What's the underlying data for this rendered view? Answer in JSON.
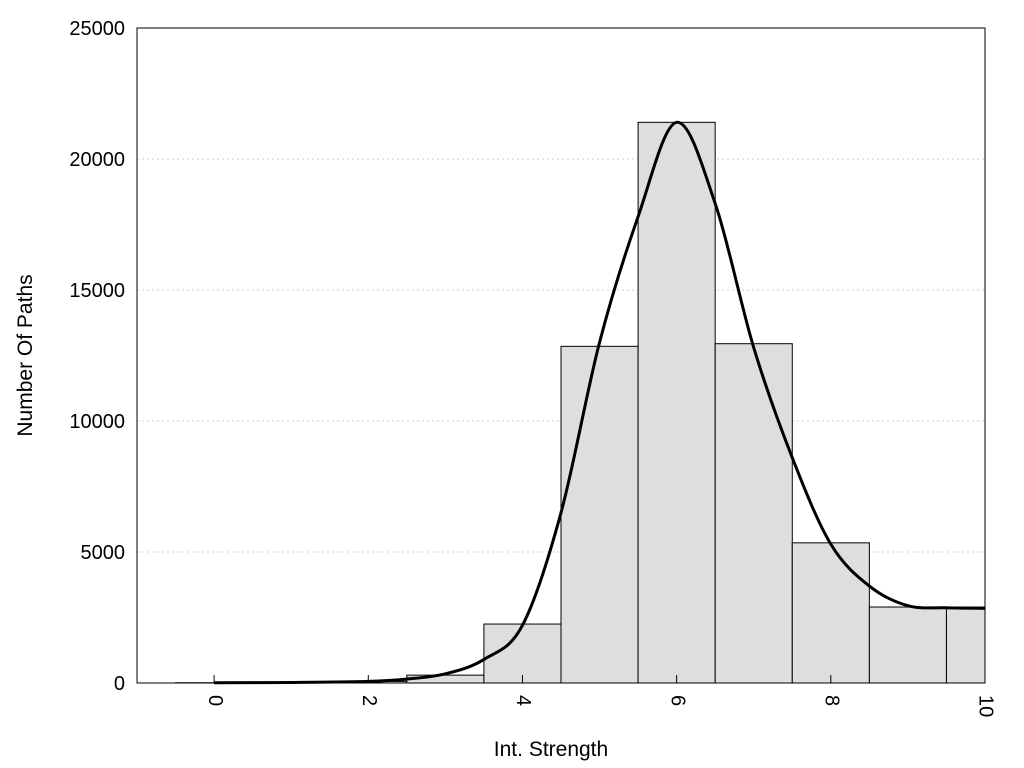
{
  "chart_data": {
    "type": "bar",
    "title": "",
    "xlabel": "Int. Strength",
    "ylabel": "Number Of Paths",
    "xlim": [
      -1,
      10
    ],
    "ylim": [
      0,
      25000
    ],
    "x_ticks": [
      "0",
      "2",
      "4",
      "6",
      "8",
      "10"
    ],
    "y_ticks": [
      "0",
      "5000",
      "10000",
      "15000",
      "20000",
      "25000"
    ],
    "grid": "horizontal dotted",
    "legend": "none",
    "bin_width": 1,
    "categories": [
      "0",
      "1",
      "2",
      "3",
      "4",
      "5",
      "6",
      "7",
      "8",
      "9",
      "10"
    ],
    "values": [
      10,
      20,
      60,
      300,
      2250,
      12850,
      21400,
      12950,
      5350,
      2900,
      2900
    ],
    "curve": {
      "x": [
        0,
        1,
        2,
        2.5,
        3,
        3.5,
        4,
        4.5,
        5,
        5.5,
        6,
        6.5,
        7,
        7.5,
        8,
        8.5,
        9,
        9.5,
        10
      ],
      "y": [
        10,
        20,
        60,
        150,
        350,
        900,
        2200,
        6500,
        13000,
        17800,
        21400,
        18300,
        12800,
        8600,
        5300,
        3700,
        2950,
        2870,
        2850
      ]
    },
    "colors": {
      "bar_fill": "#dedede",
      "bar_stroke": "#000000",
      "curve": "#000000",
      "grid": "#cccccc"
    }
  }
}
